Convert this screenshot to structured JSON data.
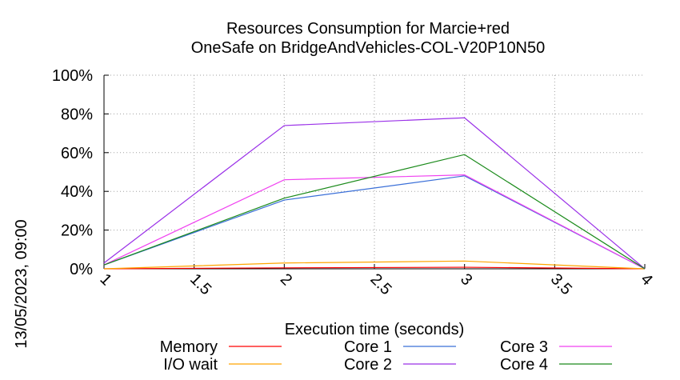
{
  "chart_data": {
    "type": "line",
    "title": [
      "Resources Consumption for Marcie+red",
      "OneSafe on BridgeAndVehicles-COL-V20P10N50"
    ],
    "xlabel": "Execution time (seconds)",
    "ylabel": "",
    "side_label": "13/05/2023, 09:00",
    "xlim": [
      1,
      4
    ],
    "ylim": [
      0,
      100
    ],
    "x_ticks": [
      1,
      1.5,
      2,
      2.5,
      3,
      3.5,
      4
    ],
    "x_tick_labels": [
      "1",
      "1.5",
      "2",
      "2.5",
      "3",
      "3.5",
      "4"
    ],
    "y_ticks": [
      0,
      20,
      40,
      60,
      80,
      100
    ],
    "y_tick_labels": [
      "0%",
      "20%",
      "40%",
      "60%",
      "80%",
      "100%"
    ],
    "grid": true,
    "legend_position": "bottom",
    "x": [
      1,
      2,
      3,
      4
    ],
    "series": [
      {
        "name": "Memory",
        "color": "#ff0000",
        "values": [
          0,
          0.5,
          0.8,
          0
        ]
      },
      {
        "name": "I/O wait",
        "color": "#ffa500",
        "values": [
          0,
          3,
          4,
          0
        ]
      },
      {
        "name": "Core 1",
        "color": "#3a6fd8",
        "values": [
          2,
          35.5,
          48,
          0
        ]
      },
      {
        "name": "Core 2",
        "color": "#9a30e8",
        "values": [
          3,
          74,
          78,
          0
        ]
      },
      {
        "name": "Core 3",
        "color": "#f040f0",
        "values": [
          2,
          46,
          48.5,
          0
        ]
      },
      {
        "name": "Core 4",
        "color": "#1a8a1a",
        "values": [
          2,
          36.5,
          59,
          0
        ]
      }
    ]
  }
}
